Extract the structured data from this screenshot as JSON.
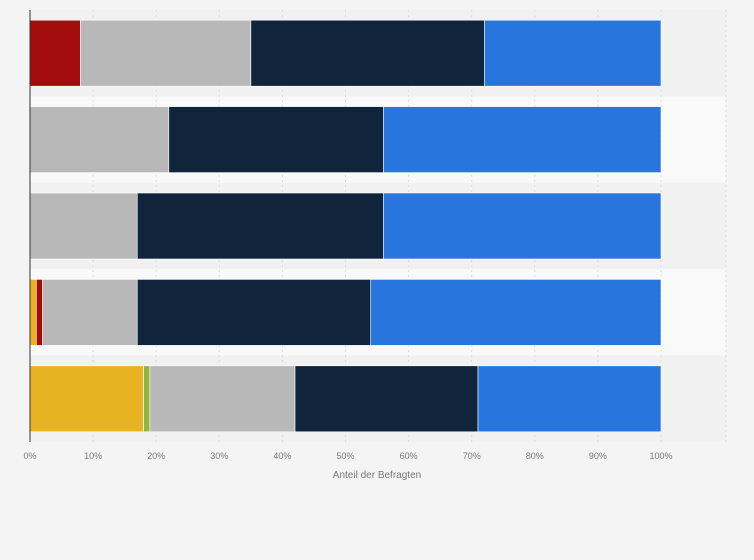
{
  "chart_data": {
    "type": "bar",
    "orientation": "horizontal",
    "stacked": true,
    "categories": [
      "",
      "",
      "",
      "",
      ""
    ],
    "x_tick_labels": [
      "0%",
      "10%",
      "20%",
      "30%",
      "40%",
      "50%",
      "60%",
      "70%",
      "80%",
      "90%",
      "100%"
    ],
    "xlabel": "Anteil der Befragten",
    "ylabel": "",
    "title": "",
    "xlim": [
      0,
      100
    ],
    "grid": true,
    "legend": "none",
    "series": [
      {
        "color": "#e8b323",
        "values": [
          0,
          0,
          0,
          1,
          18
        ]
      },
      {
        "color": "#8db83d",
        "values": [
          0,
          0,
          0,
          0,
          1
        ]
      },
      {
        "color": "#a20c0c",
        "values": [
          8,
          0,
          0,
          1,
          0
        ]
      },
      {
        "color": "#b8b8b8",
        "values": [
          27,
          22,
          17,
          15,
          23
        ]
      },
      {
        "color": "#10253b",
        "values": [
          37,
          34,
          39,
          37,
          29
        ]
      },
      {
        "color": "#2876dd",
        "values": [
          28,
          44,
          44,
          46,
          29
        ]
      }
    ]
  }
}
